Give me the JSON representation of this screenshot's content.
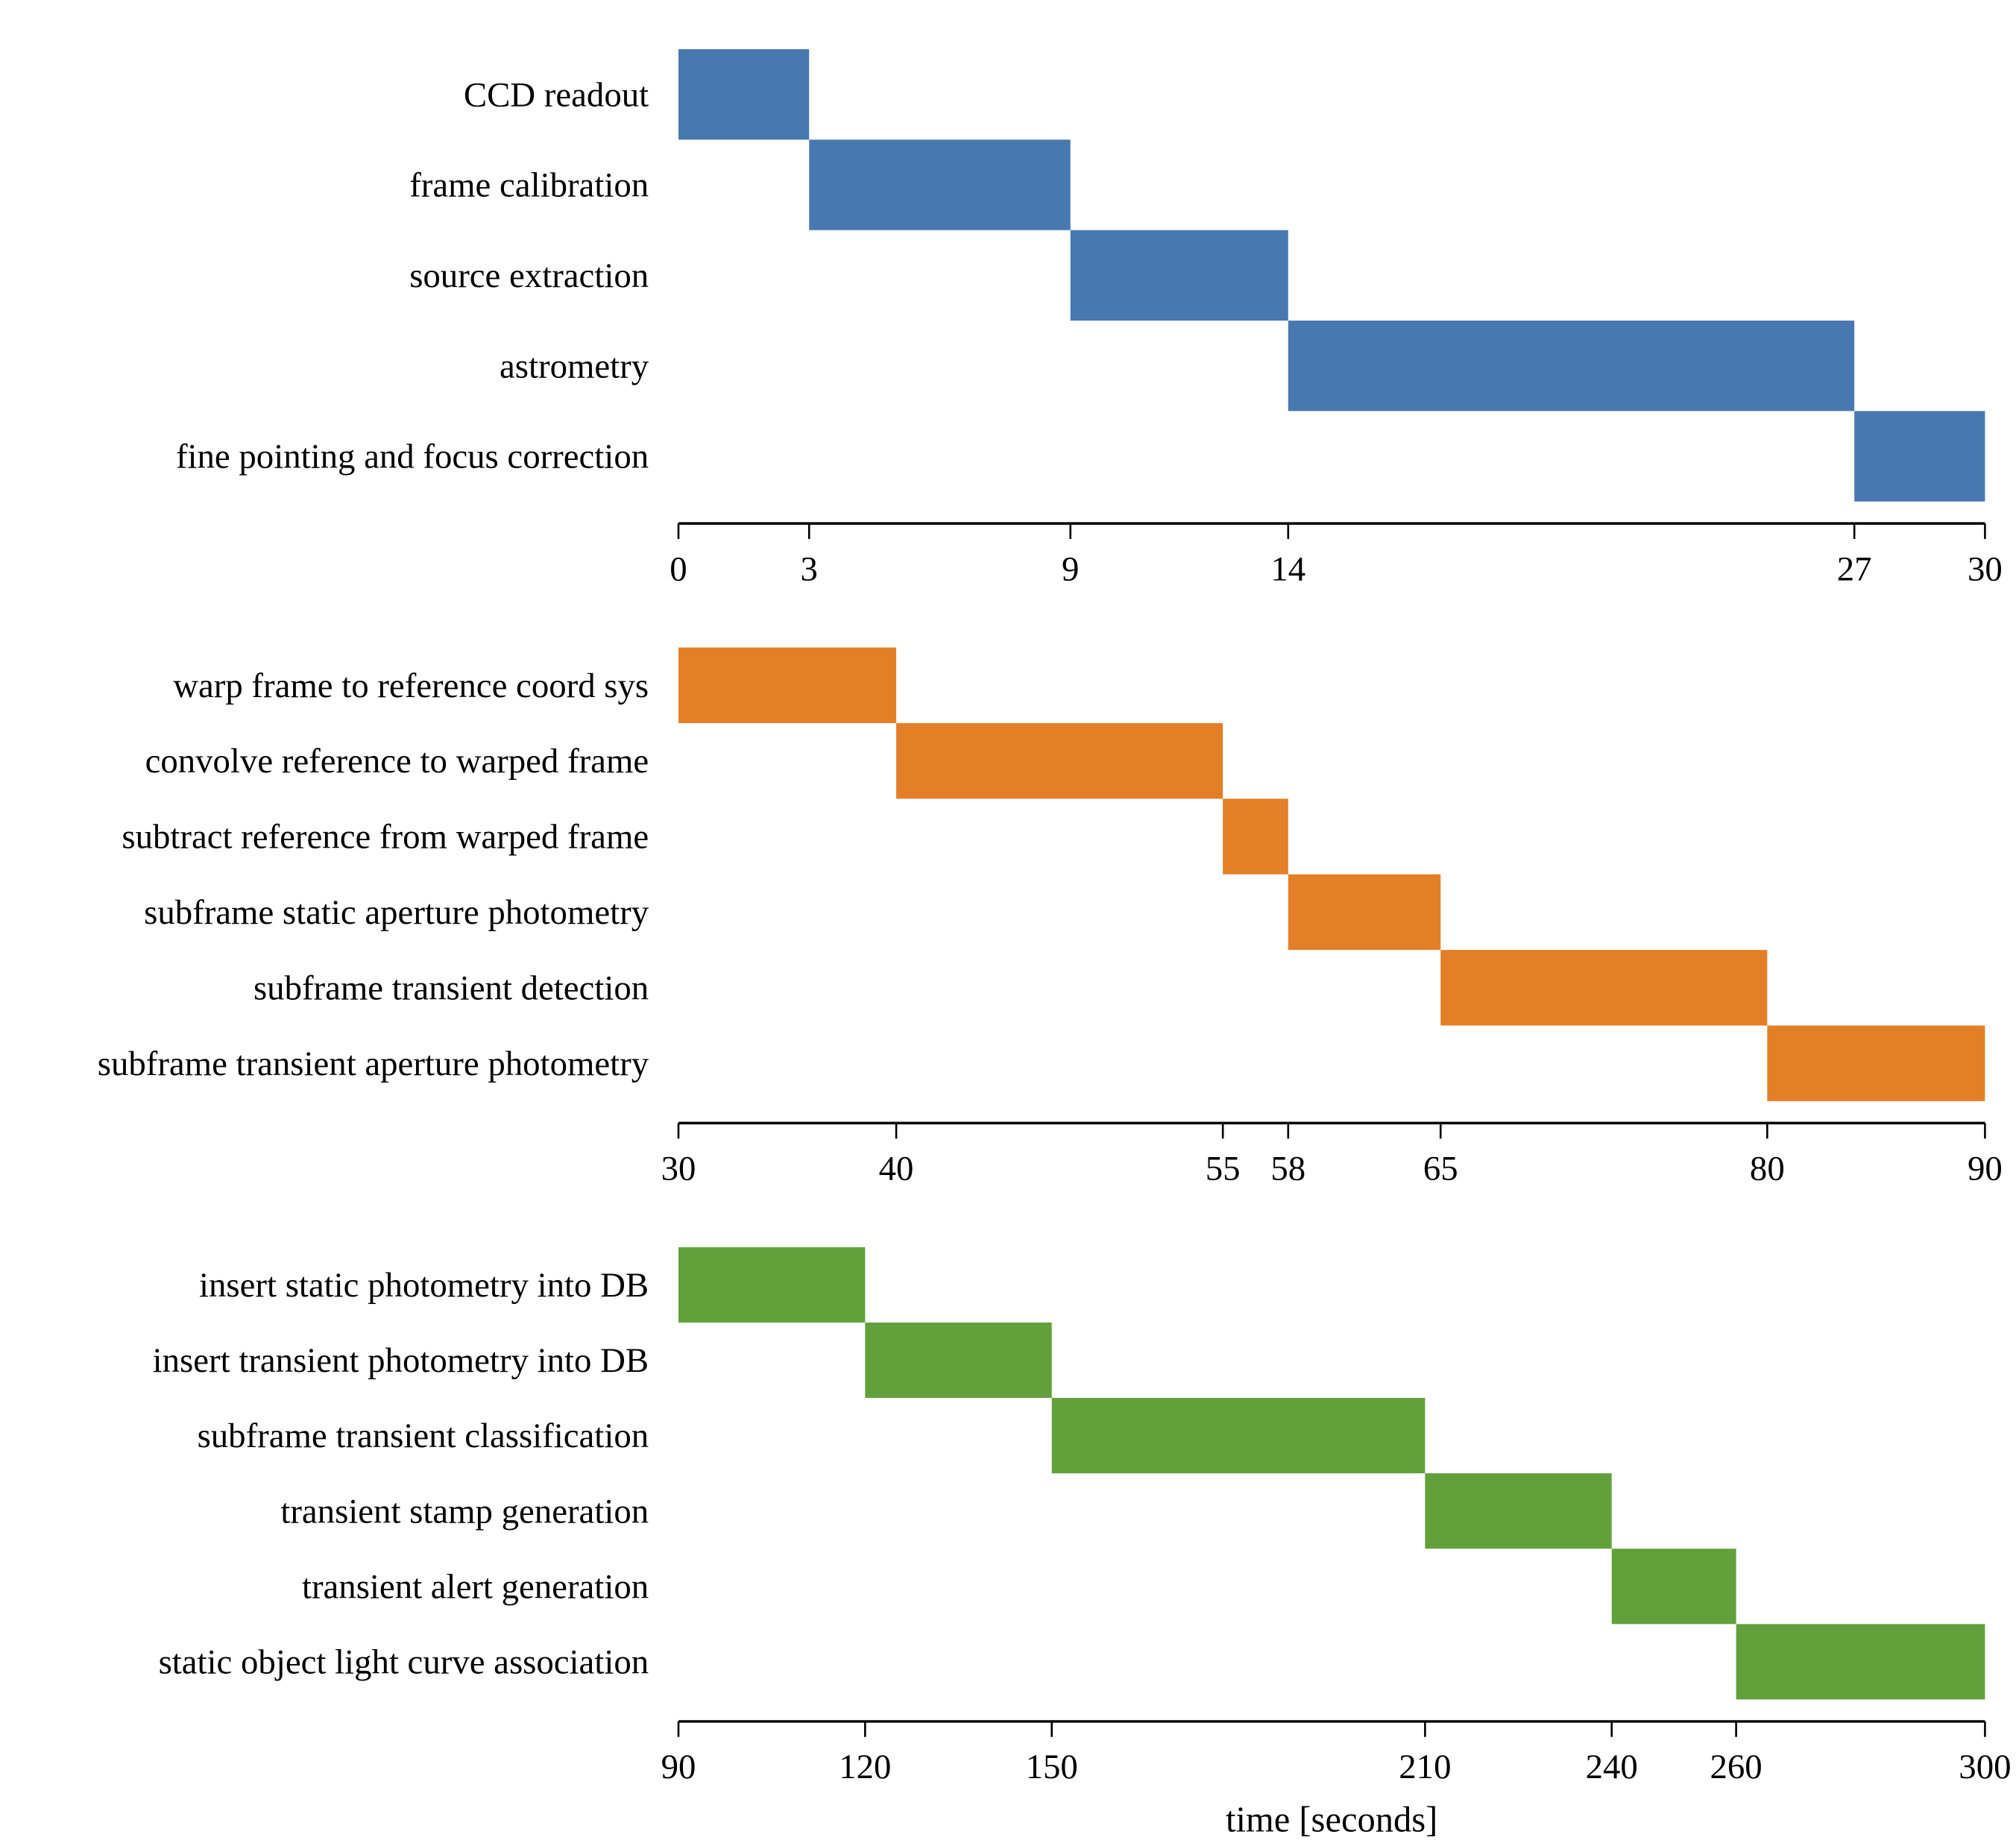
{
  "chart_data": [
    {
      "type": "bar",
      "orientation": "horizontal-gantt",
      "color": "#4878b0",
      "xlim": [
        0,
        30
      ],
      "xticks": [
        0,
        3,
        9,
        14,
        27,
        30
      ],
      "tasks": [
        {
          "label": "CCD readout",
          "start": 0,
          "end": 3
        },
        {
          "label": "frame calibration",
          "start": 3,
          "end": 9
        },
        {
          "label": "source extraction",
          "start": 9,
          "end": 14
        },
        {
          "label": "astrometry",
          "start": 14,
          "end": 27
        },
        {
          "label": "fine pointing and focus correction",
          "start": 27,
          "end": 30
        }
      ],
      "xlabel": ""
    },
    {
      "type": "bar",
      "orientation": "horizontal-gantt",
      "color": "#e37f26",
      "xlim": [
        30,
        90
      ],
      "xticks": [
        30,
        40,
        55,
        58,
        65,
        80,
        90
      ],
      "tasks": [
        {
          "label": "warp frame to reference coord sys",
          "start": 30,
          "end": 40
        },
        {
          "label": "convolve reference to warped frame",
          "start": 40,
          "end": 55
        },
        {
          "label": "subtract reference from warped frame",
          "start": 55,
          "end": 58
        },
        {
          "label": "subframe static aperture photometry",
          "start": 58,
          "end": 65
        },
        {
          "label": "subframe transient detection",
          "start": 65,
          "end": 80
        },
        {
          "label": "subframe transient aperture photometry",
          "start": 80,
          "end": 90
        }
      ],
      "xlabel": ""
    },
    {
      "type": "bar",
      "orientation": "horizontal-gantt",
      "color": "#62a03b",
      "xlim": [
        90,
        300
      ],
      "xticks": [
        90,
        120,
        150,
        210,
        240,
        260,
        300
      ],
      "tasks": [
        {
          "label": "insert static photometry into DB",
          "start": 90,
          "end": 120
        },
        {
          "label": "insert transient photometry into DB",
          "start": 120,
          "end": 150
        },
        {
          "label": "subframe transient classification",
          "start": 150,
          "end": 210
        },
        {
          "label": "transient stamp generation",
          "start": 210,
          "end": 240
        },
        {
          "label": "transient alert generation",
          "start": 240,
          "end": 260
        },
        {
          "label": "static object light curve association",
          "start": 260,
          "end": 300
        }
      ],
      "xlabel": "time [seconds]"
    }
  ]
}
